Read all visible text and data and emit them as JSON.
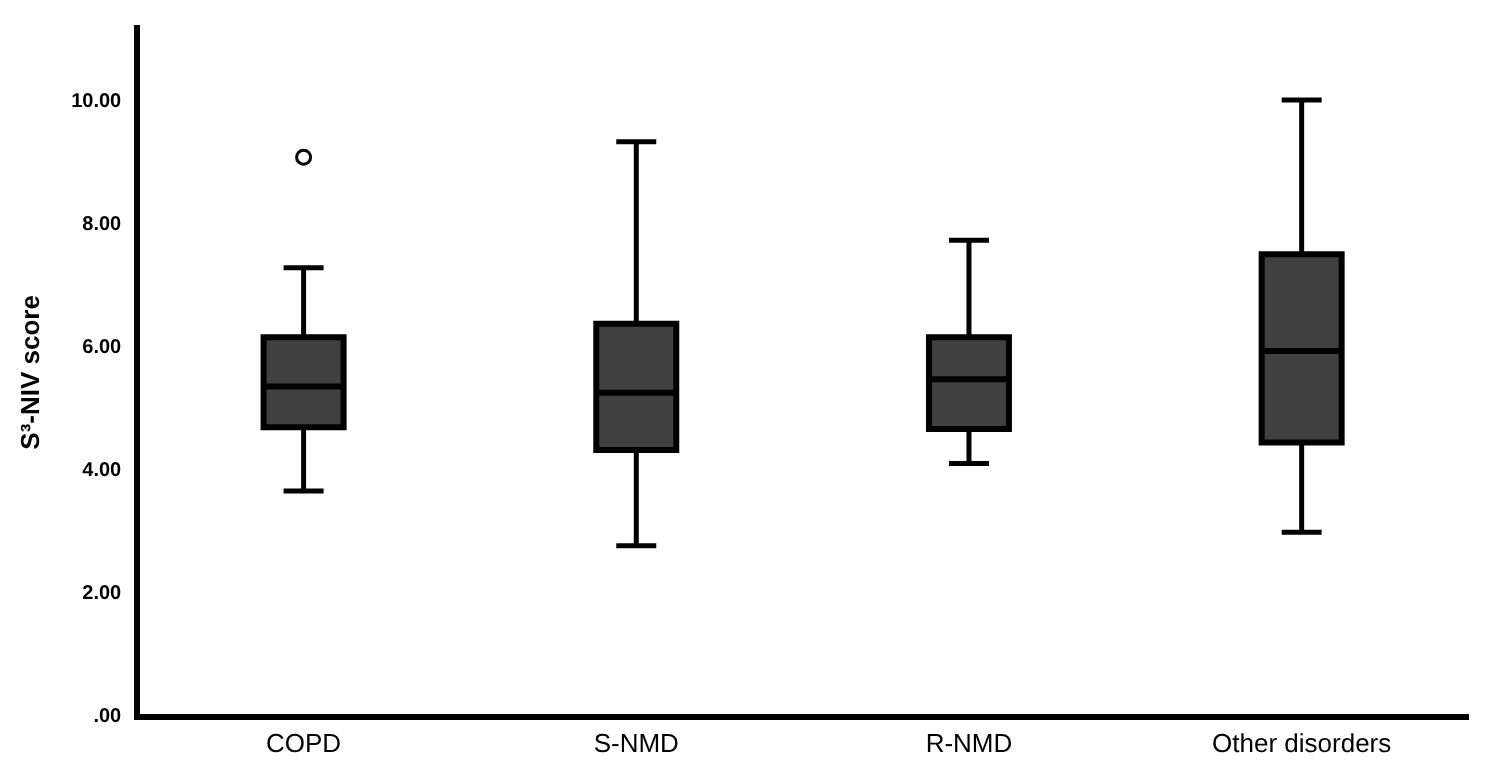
{
  "chart_data": {
    "type": "box",
    "ylabel": "S³-NIV score",
    "categories": [
      "COPD",
      "S-NMD",
      "R-NMD",
      "Other disorders"
    ],
    "color": "#404040",
    "boxes": [
      {
        "low": 3.67,
        "q1": 4.71,
        "median": 5.37,
        "q3": 6.17,
        "high": 7.3,
        "outliers": [
          9.1
        ]
      },
      {
        "low": 2.78,
        "q1": 4.34,
        "median": 5.27,
        "q3": 6.39,
        "high": 9.35
      },
      {
        "low": 4.12,
        "q1": 4.68,
        "median": 5.49,
        "q3": 6.17,
        "high": 7.75
      },
      {
        "low": 3.0,
        "q1": 4.46,
        "median": 5.95,
        "q3": 7.52,
        "high": 10.03
      }
    ],
    "ylim": [
      0,
      11.2
    ],
    "yticks": [
      {
        "value": 0,
        "label": ".00"
      },
      {
        "value": 2,
        "label": "2.00"
      },
      {
        "value": 4,
        "label": "4.00"
      },
      {
        "value": 6,
        "label": "6.00"
      },
      {
        "value": 8,
        "label": "8.00"
      },
      {
        "value": 10,
        "label": "10.00"
      }
    ],
    "grid": false
  }
}
